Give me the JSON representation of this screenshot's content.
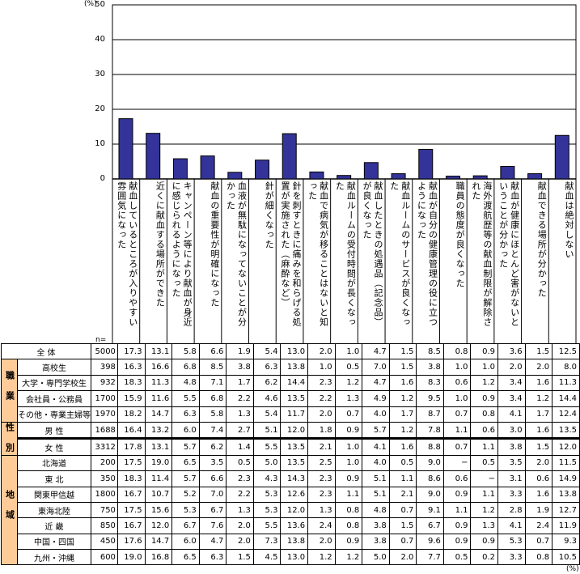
{
  "chart_data": {
    "type": "bar",
    "yunit": "(%)",
    "ylim": [
      0,
      50
    ],
    "yticks": [
      "0",
      "10",
      "20",
      "30",
      "40",
      "50"
    ],
    "grid": true,
    "bar_color": "#333399",
    "categories": [
      "献血しているところが入りやすい雰囲気になった",
      "近くに献血する場所ができた",
      "キャンペーン等により献血が身近に感じられるようになった",
      "献血の重要性が明確になった",
      "血液が無駄になってないことが分かった",
      "針が細くなった",
      "針を刺すときに痛みを和らげる処置が実施された（麻酔など）",
      "献血で病気が移ることはないと知った",
      "献血ルームの受付時間が長くなった",
      "献血したときの処遇品（記念品）が良くなった",
      "献血ルームのサービスが良くなった",
      "献血が自分の健康管理の役に立つようになった",
      "職員の態度が良くなった",
      "海外渡航歴等の献血制限が解除された",
      "献血が健康にほとんど害がないということが分かった",
      "献血できる場所が分かった",
      "献血は絶対しない"
    ],
    "values": [
      17.3,
      13.1,
      5.8,
      6.6,
      1.9,
      5.4,
      13.0,
      2.0,
      1.0,
      4.7,
      1.5,
      8.5,
      0.8,
      0.9,
      3.6,
      1.5,
      12.5
    ]
  },
  "table": {
    "n_label": "n=",
    "unit": "(%)",
    "group_color": "#ffcc99",
    "rows": [
      {
        "group": "",
        "label": "全 体",
        "n": "5000",
        "values": [
          "17.3",
          "13.1",
          "5.8",
          "6.6",
          "1.9",
          "5.4",
          "13.0",
          "2.0",
          "1.0",
          "4.7",
          "1.5",
          "8.5",
          "0.8",
          "0.9",
          "3.6",
          "1.5",
          "12.5"
        ]
      },
      {
        "group": "職業",
        "label": "高校生",
        "n": "398",
        "values": [
          "16.3",
          "16.6",
          "6.8",
          "8.5",
          "3.8",
          "6.3",
          "13.8",
          "1.0",
          "0.5",
          "7.0",
          "1.5",
          "3.8",
          "1.0",
          "1.0",
          "2.0",
          "2.0",
          "8.0"
        ]
      },
      {
        "group": "職業",
        "label": "大学・専門学校生",
        "n": "932",
        "values": [
          "18.3",
          "11.3",
          "4.8",
          "7.1",
          "1.7",
          "6.2",
          "14.4",
          "2.3",
          "1.2",
          "4.7",
          "1.6",
          "8.3",
          "0.6",
          "1.2",
          "3.4",
          "1.6",
          "11.3"
        ]
      },
      {
        "group": "職業",
        "label": "会社員・公務員",
        "n": "1700",
        "values": [
          "15.9",
          "11.6",
          "5.5",
          "6.8",
          "2.2",
          "4.6",
          "13.5",
          "2.2",
          "1.3",
          "4.9",
          "1.2",
          "9.5",
          "1.0",
          "0.9",
          "3.4",
          "1.2",
          "14.4"
        ]
      },
      {
        "group": "職業",
        "label": "その他・専業主婦等",
        "n": "1970",
        "values": [
          "18.2",
          "14.7",
          "6.3",
          "5.8",
          "1.3",
          "5.4",
          "11.7",
          "2.0",
          "0.7",
          "4.0",
          "1.7",
          "8.7",
          "0.7",
          "0.8",
          "4.1",
          "1.7",
          "12.4"
        ]
      },
      {
        "group": "性別",
        "label": "男 性",
        "n": "1688",
        "values": [
          "16.4",
          "13.2",
          "6.0",
          "7.4",
          "2.7",
          "5.1",
          "12.0",
          "1.8",
          "0.9",
          "5.7",
          "1.2",
          "7.8",
          "1.1",
          "0.6",
          "3.0",
          "1.6",
          "13.5"
        ]
      },
      {
        "group": "性別",
        "label": "女 性",
        "n": "3312",
        "values": [
          "17.8",
          "13.1",
          "5.7",
          "6.2",
          "1.4",
          "5.5",
          "13.5",
          "2.1",
          "1.0",
          "4.1",
          "1.6",
          "8.8",
          "0.7",
          "1.1",
          "3.8",
          "1.5",
          "12.0"
        ]
      },
      {
        "group": "地域",
        "label": "北海道",
        "n": "200",
        "values": [
          "17.5",
          "19.0",
          "6.5",
          "3.5",
          "0.5",
          "5.0",
          "13.5",
          "2.5",
          "1.0",
          "4.0",
          "0.5",
          "9.0",
          "−",
          "0.5",
          "3.5",
          "2.0",
          "11.5"
        ]
      },
      {
        "group": "地域",
        "label": "東 北",
        "n": "350",
        "values": [
          "18.3",
          "11.4",
          "5.7",
          "6.6",
          "2.3",
          "4.3",
          "14.3",
          "2.3",
          "0.9",
          "5.1",
          "1.1",
          "8.6",
          "0.6",
          "−",
          "3.1",
          "0.6",
          "14.9"
        ]
      },
      {
        "group": "地域",
        "label": "関東甲信越",
        "n": "1800",
        "values": [
          "16.7",
          "10.7",
          "5.2",
          "7.0",
          "2.2",
          "5.3",
          "12.6",
          "2.3",
          "1.1",
          "5.1",
          "2.1",
          "9.0",
          "0.9",
          "1.1",
          "3.3",
          "1.6",
          "13.8"
        ]
      },
      {
        "group": "地域",
        "label": "東海北陸",
        "n": "750",
        "values": [
          "17.5",
          "15.6",
          "5.3",
          "6.7",
          "1.3",
          "5.3",
          "12.0",
          "1.3",
          "0.8",
          "4.8",
          "0.7",
          "9.1",
          "1.1",
          "1.2",
          "2.8",
          "1.9",
          "12.7"
        ]
      },
      {
        "group": "地域",
        "label": "近 畿",
        "n": "850",
        "values": [
          "16.7",
          "12.0",
          "6.7",
          "7.6",
          "2.0",
          "5.5",
          "13.6",
          "2.4",
          "0.8",
          "3.8",
          "1.5",
          "6.7",
          "0.9",
          "1.3",
          "4.1",
          "2.4",
          "11.9"
        ]
      },
      {
        "group": "地域",
        "label": "中国・四国",
        "n": "450",
        "values": [
          "17.6",
          "14.7",
          "6.0",
          "4.7",
          "2.0",
          "7.3",
          "13.8",
          "2.0",
          "0.9",
          "3.8",
          "0.7",
          "9.6",
          "0.9",
          "0.9",
          "5.3",
          "0.7",
          "9.3"
        ]
      },
      {
        "group": "地域",
        "label": "九州・沖縄",
        "n": "600",
        "values": [
          "19.0",
          "16.8",
          "6.5",
          "6.3",
          "1.5",
          "4.5",
          "13.0",
          "1.2",
          "1.2",
          "5.0",
          "2.0",
          "7.7",
          "0.5",
          "0.2",
          "3.3",
          "0.8",
          "10.5"
        ]
      }
    ]
  }
}
